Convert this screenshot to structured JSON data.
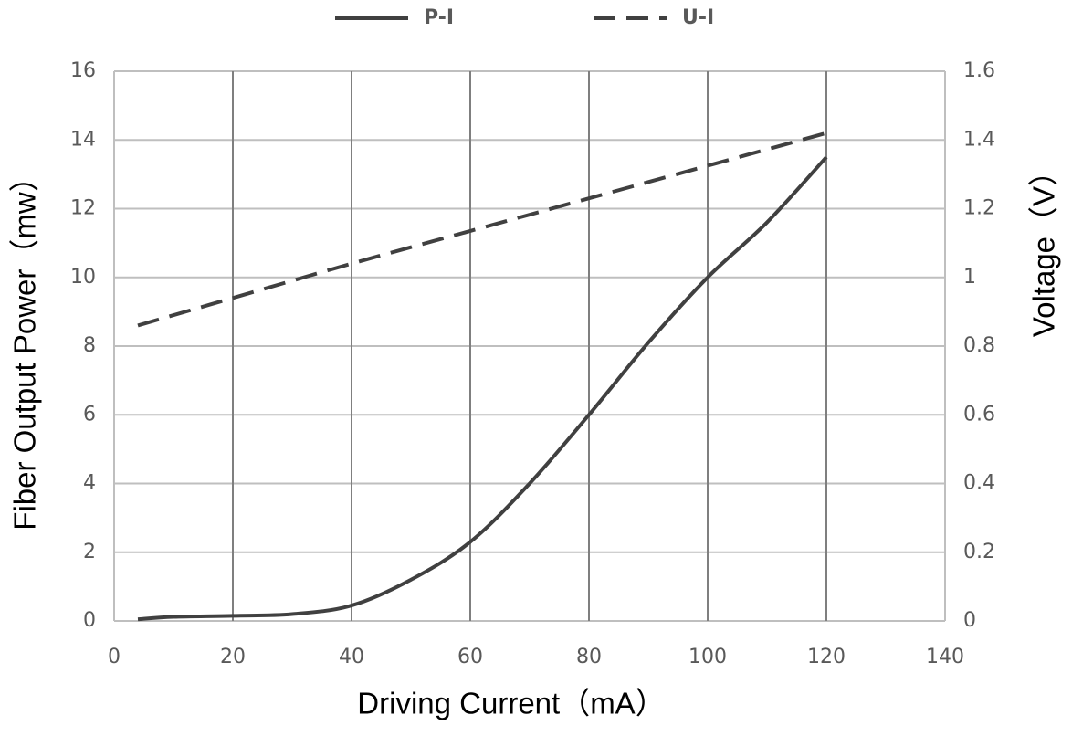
{
  "chart_data": {
    "type": "line",
    "x_label": "Driving Current（mA）",
    "y_label": "Fiber Output Power（mw）",
    "y2_label": "Voltage（V）",
    "xlim": [
      0,
      140
    ],
    "xticks": [
      0,
      20,
      40,
      60,
      80,
      100,
      120,
      140
    ],
    "ylim": [
      0,
      16
    ],
    "yticks": [
      0,
      2,
      4,
      6,
      8,
      10,
      12,
      14,
      16
    ],
    "y2lim": [
      0,
      1.6
    ],
    "y2ticks": [
      0,
      0.2,
      0.4,
      0.6,
      0.8,
      1,
      1.2,
      1.4,
      1.6
    ],
    "grid": true,
    "legend": "top",
    "series": [
      {
        "name": "P-I",
        "color": "#404040",
        "dash": false,
        "x": [
          4,
          10,
          20,
          30,
          40,
          50,
          60,
          70,
          80,
          90,
          100,
          110,
          120
        ],
        "values": [
          0.05,
          0.12,
          0.15,
          0.2,
          0.45,
          1.2,
          2.3,
          4.0,
          6.0,
          8.1,
          10.0,
          11.6,
          13.5
        ]
      },
      {
        "name": "U-I",
        "color": "#404040",
        "dash": true,
        "axis": "y2",
        "x": [
          4,
          20,
          40,
          60,
          80,
          100,
          120
        ],
        "values": [
          0.86,
          0.94,
          1.04,
          1.135,
          1.23,
          1.325,
          1.42
        ]
      }
    ]
  }
}
